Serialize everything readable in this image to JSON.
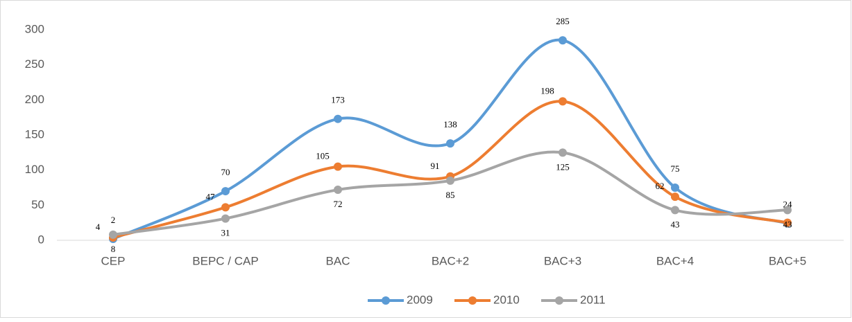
{
  "chart_data": {
    "type": "line",
    "categories": [
      "CEP",
      "BEPC / CAP",
      "BAC",
      "BAC+2",
      "BAC+3",
      "BAC+4",
      "BAC+5"
    ],
    "series": [
      {
        "name": "2009",
        "color": "#5b9bd5",
        "values": [
          2,
          70,
          173,
          138,
          285,
          75,
          24
        ]
      },
      {
        "name": "2010",
        "color": "#ed7d31",
        "values": [
          4,
          47,
          105,
          91,
          198,
          62,
          25
        ],
        "value_labels": [
          "4",
          "47",
          "105",
          "91",
          "198",
          "62",
          null
        ]
      },
      {
        "name": "2011",
        "color": "#a5a5a5",
        "values": [
          8,
          31,
          72,
          85,
          125,
          43,
          43
        ]
      }
    ],
    "ylim": [
      0,
      300
    ],
    "yticks": [
      0,
      50,
      100,
      150,
      200,
      250,
      300
    ],
    "grid": false,
    "legend": "bottom"
  }
}
